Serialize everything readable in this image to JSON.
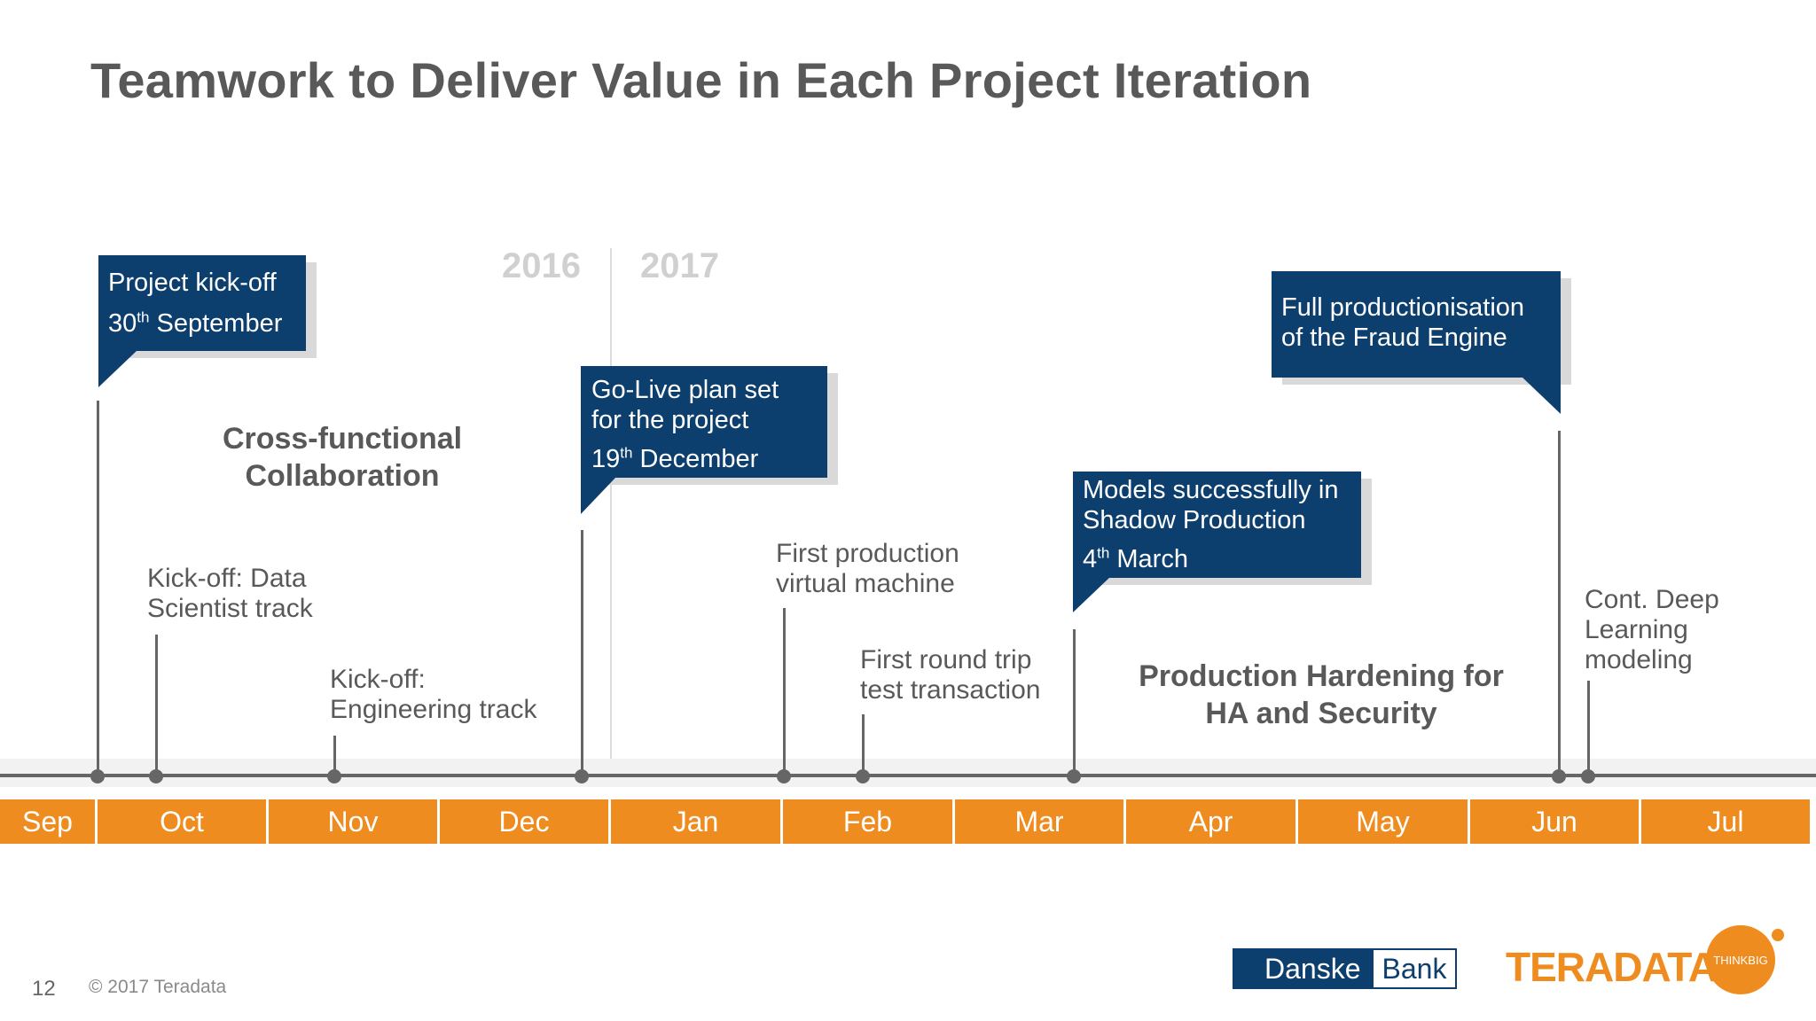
{
  "slide": {
    "title": "Teamwork to Deliver Value in Each Project Iteration",
    "page_number": "12",
    "copyright": "© 2017 Teradata"
  },
  "years": {
    "left": "2016",
    "right": "2017"
  },
  "months": [
    "Sep",
    "Oct",
    "Nov",
    "Dec",
    "Jan",
    "Feb",
    "Mar",
    "Apr",
    "May",
    "Jun",
    "Jul"
  ],
  "callouts": {
    "kickoff": {
      "line1": "Project kick-off",
      "date_num": "30",
      "date_sup": "th",
      "date_rest": " September"
    },
    "golive": {
      "line1": "Go-Live plan set",
      "line2": "for the project",
      "date_num": "19",
      "date_sup": "th",
      "date_rest": " December"
    },
    "shadow": {
      "line1": "Models successfully in",
      "line2": "Shadow Production",
      "date_num": "4",
      "date_sup": "th",
      "date_rest": " March"
    },
    "full": {
      "line1": "Full productionisation",
      "line2": "of the Fraud Engine"
    }
  },
  "labels": {
    "data_scientist": {
      "line1": "Kick-off: Data",
      "line2": "Scientist track"
    },
    "engineering": {
      "line1": "Kick-off:",
      "line2": "Engineering track"
    },
    "first_vm": {
      "line1": "First production",
      "line2": "virtual machine"
    },
    "round_trip": {
      "line1": "First round trip",
      "line2": "test transaction"
    },
    "deep_learning": {
      "line1": "Cont. Deep",
      "line2": "Learning",
      "line3": "modeling"
    }
  },
  "phases": {
    "collab": {
      "line1": "Cross-functional",
      "line2": "Collaboration"
    },
    "hardening": {
      "line1": "Production Hardening for",
      "line2": "HA and Security"
    }
  },
  "logos": {
    "danske_left": "Danske",
    "danske_right": "Bank",
    "teradata": "TERADATA",
    "thinkbig": "THINKBIG"
  },
  "colors": {
    "callout": "#0d3f6e",
    "month_bar": "#ef8c1f",
    "axis": "#666666",
    "text": "#595959"
  }
}
